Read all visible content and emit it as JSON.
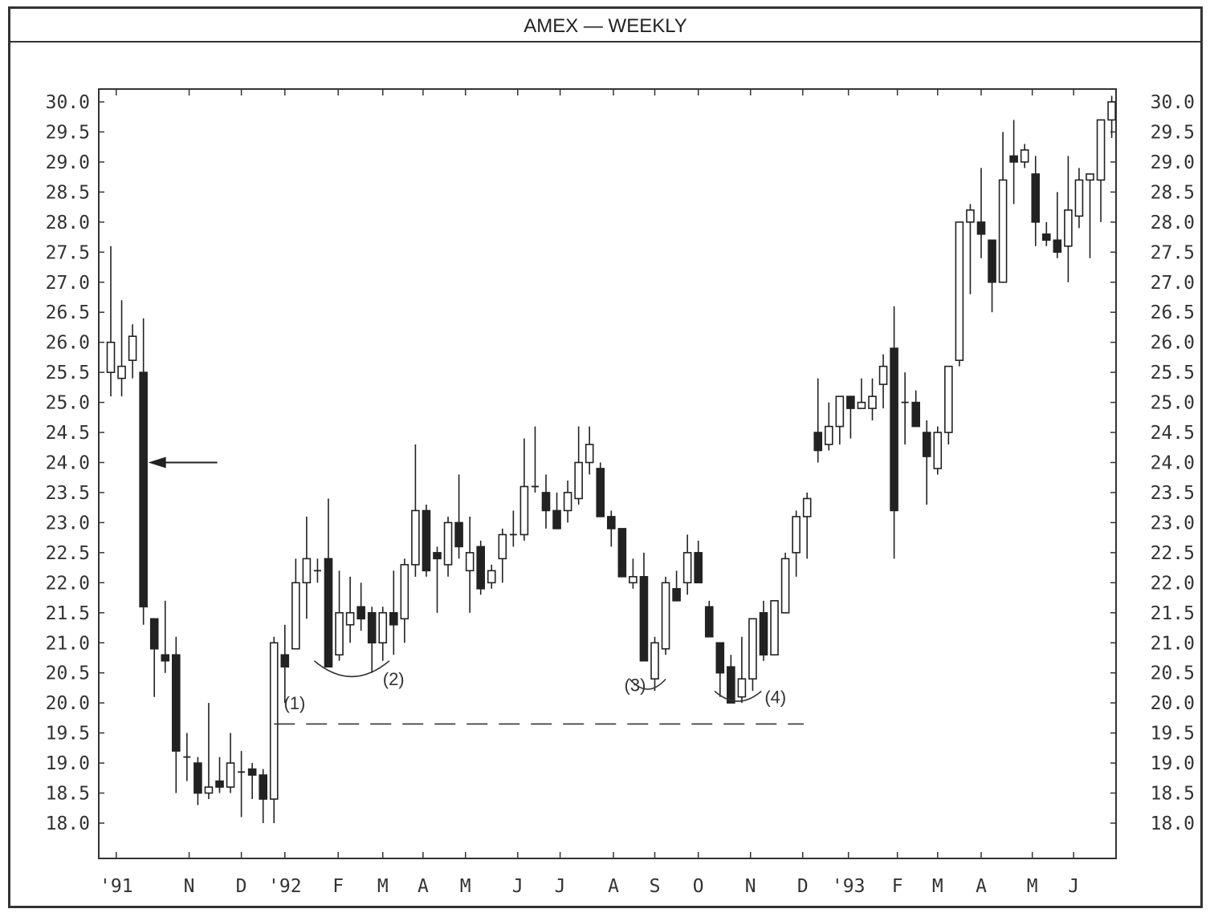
{
  "chart_data": {
    "type": "candlestick",
    "title": "AMEX — WEEKLY",
    "ylim": [
      18.0,
      30.0
    ],
    "y_ticks": [
      "30.0",
      "29.5",
      "29.0",
      "28.5",
      "28.0",
      "27.5",
      "27.0",
      "26.5",
      "26.0",
      "25.5",
      "25.0",
      "24.5",
      "24.0",
      "23.5",
      "23.0",
      "22.5",
      "22.0",
      "21.5",
      "21.0",
      "20.5",
      "20.0",
      "19.5",
      "19.0",
      "18.5",
      "18.0"
    ],
    "x_labels": [
      "'91",
      "N",
      "D",
      "'92",
      "F",
      "M",
      "A",
      "M",
      "J",
      "J",
      "A",
      "S",
      "O",
      "N",
      "D",
      "'93",
      "F",
      "M",
      "A",
      "M",
      "J"
    ],
    "x_label_weeks": [
      0.5,
      7.2,
      12.0,
      16.0,
      20.9,
      25.0,
      28.7,
      32.6,
      37.4,
      41.3,
      46.2,
      50.0,
      54.0,
      58.8,
      63.6,
      67.8,
      72.3,
      76.0,
      80.0,
      84.7,
      88.5
    ],
    "candles": [
      {
        "o": 25.5,
        "h": 27.6,
        "l": 25.1,
        "c": 26.0
      },
      {
        "o": 25.4,
        "h": 26.7,
        "l": 25.1,
        "c": 25.6
      },
      {
        "o": 25.7,
        "h": 26.3,
        "l": 25.4,
        "c": 26.1
      },
      {
        "o": 25.5,
        "h": 26.4,
        "l": 21.3,
        "c": 21.6
      },
      {
        "o": 21.4,
        "h": 21.4,
        "l": 20.1,
        "c": 20.9
      },
      {
        "o": 20.8,
        "h": 21.7,
        "l": 20.5,
        "c": 20.7
      },
      {
        "o": 20.8,
        "h": 21.1,
        "l": 18.5,
        "c": 19.2
      },
      {
        "o": 19.1,
        "h": 19.5,
        "l": 18.7,
        "c": 19.1
      },
      {
        "o": 19.0,
        "h": 19.1,
        "l": 18.3,
        "c": 18.5
      },
      {
        "o": 18.5,
        "h": 20.0,
        "l": 18.4,
        "c": 18.6
      },
      {
        "o": 18.7,
        "h": 19.1,
        "l": 18.5,
        "c": 18.6
      },
      {
        "o": 18.6,
        "h": 19.5,
        "l": 18.5,
        "c": 19.0
      },
      {
        "o": 18.85,
        "h": 19.2,
        "l": 18.1,
        "c": 18.85
      },
      {
        "o": 18.9,
        "h": 19.0,
        "l": 18.4,
        "c": 18.8
      },
      {
        "o": 18.8,
        "h": 18.9,
        "l": 18.0,
        "c": 18.4
      },
      {
        "o": 18.4,
        "h": 21.1,
        "l": 18.0,
        "c": 21.0
      },
      {
        "o": 20.8,
        "h": 21.3,
        "l": 20.0,
        "c": 20.6
      },
      {
        "o": 20.9,
        "h": 22.4,
        "l": 20.9,
        "c": 22.0
      },
      {
        "o": 22.0,
        "h": 23.1,
        "l": 21.4,
        "c": 22.4
      },
      {
        "o": 22.2,
        "h": 22.4,
        "l": 22.0,
        "c": 22.2
      },
      {
        "o": 22.4,
        "h": 23.4,
        "l": 20.6,
        "c": 20.6
      },
      {
        "o": 20.8,
        "h": 22.2,
        "l": 20.7,
        "c": 21.5
      },
      {
        "o": 21.3,
        "h": 22.1,
        "l": 21.0,
        "c": 21.5
      },
      {
        "o": 21.6,
        "h": 22.0,
        "l": 21.2,
        "c": 21.4
      },
      {
        "o": 21.5,
        "h": 21.6,
        "l": 20.5,
        "c": 21.0
      },
      {
        "o": 21.0,
        "h": 21.6,
        "l": 20.7,
        "c": 21.5
      },
      {
        "o": 21.5,
        "h": 22.2,
        "l": 20.8,
        "c": 21.3
      },
      {
        "o": 21.4,
        "h": 22.4,
        "l": 21.0,
        "c": 22.3
      },
      {
        "o": 22.3,
        "h": 24.3,
        "l": 22.1,
        "c": 23.2
      },
      {
        "o": 23.2,
        "h": 23.3,
        "l": 22.1,
        "c": 22.2
      },
      {
        "o": 22.5,
        "h": 22.6,
        "l": 21.5,
        "c": 22.4
      },
      {
        "o": 22.3,
        "h": 23.1,
        "l": 22.1,
        "c": 23.0
      },
      {
        "o": 23.0,
        "h": 23.8,
        "l": 22.4,
        "c": 22.6
      },
      {
        "o": 22.2,
        "h": 23.1,
        "l": 21.5,
        "c": 22.5
      },
      {
        "o": 22.6,
        "h": 22.7,
        "l": 21.8,
        "c": 21.9
      },
      {
        "o": 22.0,
        "h": 22.3,
        "l": 21.9,
        "c": 22.2
      },
      {
        "o": 22.4,
        "h": 22.9,
        "l": 22.0,
        "c": 22.8
      },
      {
        "o": 22.8,
        "h": 23.2,
        "l": 22.6,
        "c": 22.8
      },
      {
        "o": 22.8,
        "h": 24.4,
        "l": 22.7,
        "c": 23.6
      },
      {
        "o": 23.6,
        "h": 24.6,
        "l": 23.5,
        "c": 23.6
      },
      {
        "o": 23.5,
        "h": 23.8,
        "l": 22.9,
        "c": 23.2
      },
      {
        "o": 23.2,
        "h": 23.5,
        "l": 22.9,
        "c": 22.9
      },
      {
        "o": 23.2,
        "h": 23.7,
        "l": 23.0,
        "c": 23.5
      },
      {
        "o": 23.4,
        "h": 24.6,
        "l": 23.3,
        "c": 24.0
      },
      {
        "o": 24.0,
        "h": 24.6,
        "l": 23.8,
        "c": 24.3
      },
      {
        "o": 23.9,
        "h": 24.0,
        "l": 23.1,
        "c": 23.1
      },
      {
        "o": 23.1,
        "h": 23.2,
        "l": 22.6,
        "c": 22.9
      },
      {
        "o": 22.9,
        "h": 22.9,
        "l": 22.1,
        "c": 22.1
      },
      {
        "o": 22.0,
        "h": 22.4,
        "l": 21.9,
        "c": 22.1
      },
      {
        "o": 22.1,
        "h": 22.5,
        "l": 20.7,
        "c": 20.7
      },
      {
        "o": 20.4,
        "h": 21.1,
        "l": 20.2,
        "c": 21.0
      },
      {
        "o": 20.9,
        "h": 22.1,
        "l": 20.8,
        "c": 22.0
      },
      {
        "o": 21.9,
        "h": 22.2,
        "l": 21.7,
        "c": 21.7
      },
      {
        "o": 22.0,
        "h": 22.8,
        "l": 21.8,
        "c": 22.5
      },
      {
        "o": 22.5,
        "h": 22.7,
        "l": 22.0,
        "c": 22.0
      },
      {
        "o": 21.6,
        "h": 21.7,
        "l": 21.1,
        "c": 21.1
      },
      {
        "o": 21.0,
        "h": 21.0,
        "l": 20.1,
        "c": 20.5
      },
      {
        "o": 20.6,
        "h": 20.8,
        "l": 20.0,
        "c": 20.0
      },
      {
        "o": 20.1,
        "h": 21.1,
        "l": 20.0,
        "c": 20.4
      },
      {
        "o": 20.4,
        "h": 21.4,
        "l": 20.2,
        "c": 21.4
      },
      {
        "o": 21.5,
        "h": 21.7,
        "l": 20.7,
        "c": 20.8
      },
      {
        "o": 20.8,
        "h": 21.7,
        "l": 20.8,
        "c": 21.7
      },
      {
        "o": 21.5,
        "h": 22.5,
        "l": 21.5,
        "c": 22.4
      },
      {
        "o": 22.5,
        "h": 23.2,
        "l": 22.1,
        "c": 23.1
      },
      {
        "o": 23.1,
        "h": 23.5,
        "l": 22.4,
        "c": 23.4
      },
      {
        "o": 24.5,
        "h": 25.4,
        "l": 24.0,
        "c": 24.2
      },
      {
        "o": 24.3,
        "h": 25.0,
        "l": 24.2,
        "c": 24.6
      },
      {
        "o": 24.6,
        "h": 25.1,
        "l": 24.3,
        "c": 25.1
      },
      {
        "o": 25.1,
        "h": 25.1,
        "l": 24.4,
        "c": 24.9
      },
      {
        "o": 24.9,
        "h": 25.4,
        "l": 24.9,
        "c": 25.0
      },
      {
        "o": 24.9,
        "h": 25.4,
        "l": 24.7,
        "c": 25.1
      },
      {
        "o": 25.3,
        "h": 25.8,
        "l": 24.9,
        "c": 25.6
      },
      {
        "o": 25.9,
        "h": 26.6,
        "l": 22.4,
        "c": 23.2
      },
      {
        "o": 25.0,
        "h": 25.5,
        "l": 24.3,
        "c": 25.0
      },
      {
        "o": 25.0,
        "h": 25.2,
        "l": 24.6,
        "c": 24.6
      },
      {
        "o": 24.5,
        "h": 24.7,
        "l": 23.3,
        "c": 24.1
      },
      {
        "o": 23.9,
        "h": 24.6,
        "l": 23.8,
        "c": 24.5
      },
      {
        "o": 24.5,
        "h": 25.6,
        "l": 24.3,
        "c": 25.6
      },
      {
        "o": 25.7,
        "h": 28.0,
        "l": 25.6,
        "c": 28.0
      },
      {
        "o": 28.0,
        "h": 28.3,
        "l": 26.8,
        "c": 28.2
      },
      {
        "o": 28.0,
        "h": 28.9,
        "l": 27.4,
        "c": 27.8
      },
      {
        "o": 27.7,
        "h": 27.7,
        "l": 26.5,
        "c": 27.0
      },
      {
        "o": 27.0,
        "h": 29.5,
        "l": 27.0,
        "c": 28.7
      },
      {
        "o": 29.1,
        "h": 29.7,
        "l": 28.3,
        "c": 29.0
      },
      {
        "o": 29.0,
        "h": 29.3,
        "l": 28.9,
        "c": 29.2
      },
      {
        "o": 28.8,
        "h": 29.1,
        "l": 27.6,
        "c": 28.0
      },
      {
        "o": 27.8,
        "h": 28.0,
        "l": 27.6,
        "c": 27.7
      },
      {
        "o": 27.7,
        "h": 28.5,
        "l": 27.4,
        "c": 27.5
      },
      {
        "o": 27.6,
        "h": 29.1,
        "l": 27.0,
        "c": 28.2
      },
      {
        "o": 28.1,
        "h": 28.9,
        "l": 27.9,
        "c": 28.7
      },
      {
        "o": 28.7,
        "h": 28.8,
        "l": 27.4,
        "c": 28.8
      },
      {
        "o": 28.7,
        "h": 29.7,
        "l": 28.0,
        "c": 29.7
      },
      {
        "o": 29.7,
        "h": 30.1,
        "l": 29.4,
        "c": 30.0
      }
    ],
    "annotations": [
      {
        "label": "(1)",
        "x": 15.9,
        "y": 20.0
      },
      {
        "label": "(2)",
        "x": 25.0,
        "y": 20.4
      },
      {
        "label": "(3)",
        "x": 47.2,
        "y": 20.3
      },
      {
        "label": "(4)",
        "x": 60.1,
        "y": 20.1
      }
    ],
    "support_line": {
      "y": 19.65,
      "x_start": 15.0,
      "x_end": 63.7
    },
    "arrow_at": 24.0,
    "grid": false
  }
}
